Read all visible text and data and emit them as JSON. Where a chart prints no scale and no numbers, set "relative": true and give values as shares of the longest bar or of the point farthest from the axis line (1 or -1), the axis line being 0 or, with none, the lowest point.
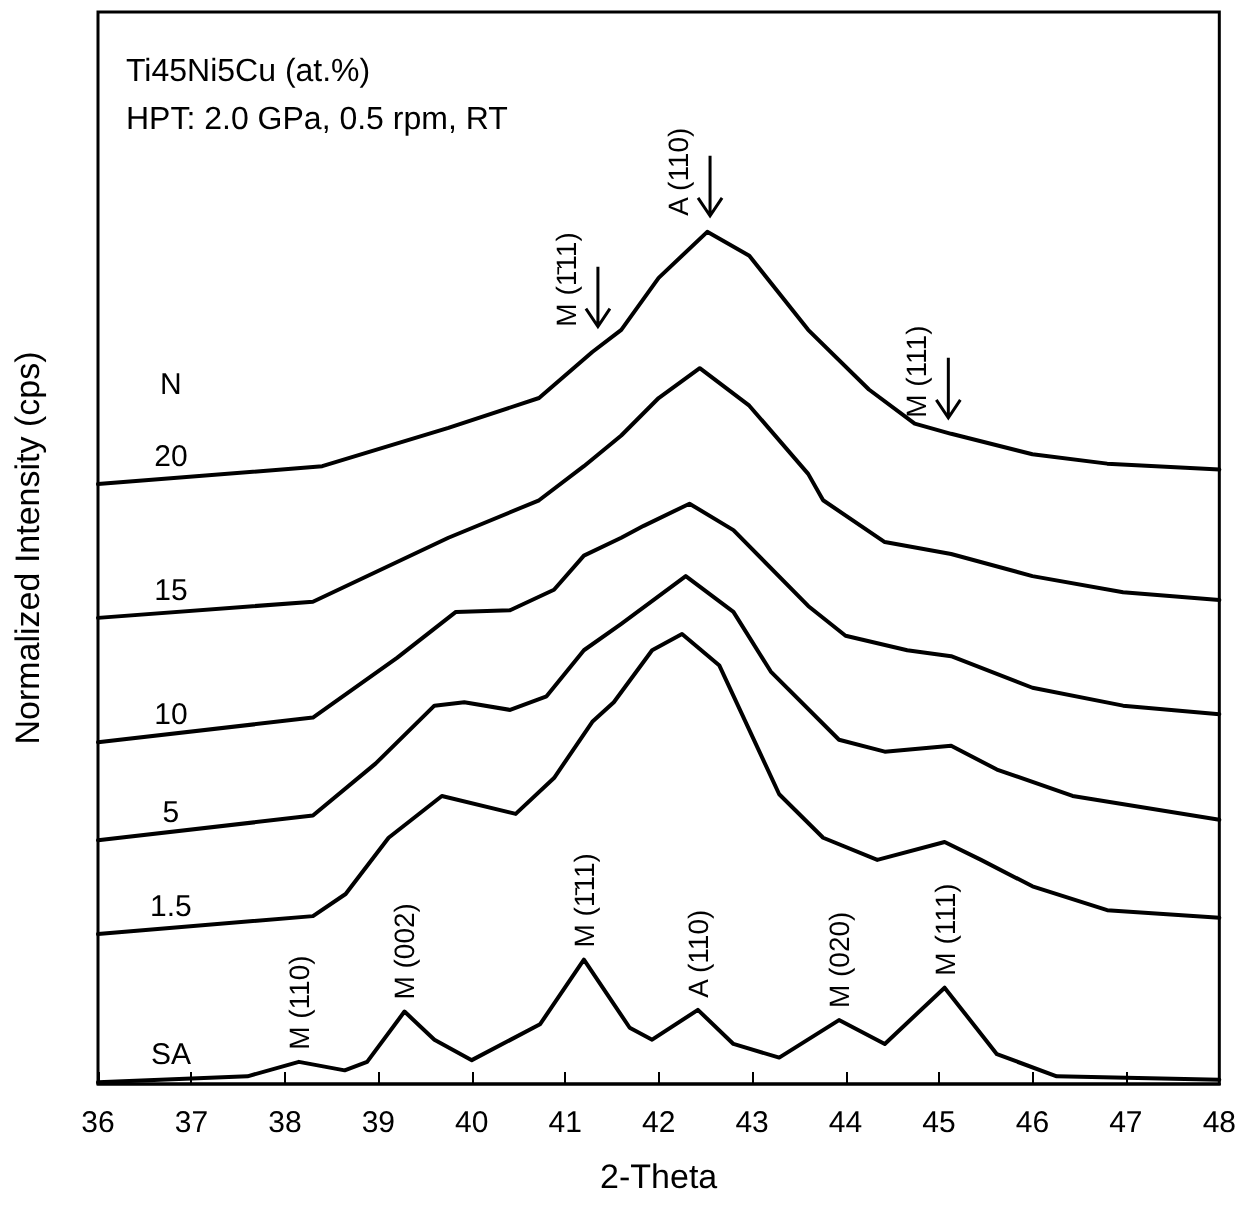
{
  "chart_data": {
    "type": "line",
    "title": "Ti45Ni5Cu (at.%)",
    "subtitle": "HPT: 2.0 GPa, 0.5 rpm, RT",
    "xlabel": "2-Theta",
    "ylabel": "Normalized Intensity (cps)",
    "legend_title": "N",
    "relative": true,
    "xlim": [
      36,
      48
    ],
    "xticks": [
      36,
      37,
      38,
      39,
      40,
      41,
      42,
      43,
      44,
      45,
      46,
      47,
      48
    ],
    "grid": false,
    "legend": false,
    "marker": "none",
    "line_style": "solid",
    "series": [
      {
        "name": "20",
        "color": "#000000",
        "x": [
          36,
          38.4,
          39.75,
          40.72,
          41.29,
          41.6,
          42.0,
          42.52,
          42.97,
          43.6,
          44.25,
          44.74,
          45.13,
          46.0,
          46.8,
          48
        ],
        "values": [
          0.704,
          0.725,
          0.77,
          0.805,
          0.859,
          0.885,
          0.946,
          1,
          0.972,
          0.885,
          0.815,
          0.775,
          0.763,
          0.739,
          0.728,
          0.721
        ]
      },
      {
        "name": "15",
        "color": "#000000",
        "x": [
          36,
          38.3,
          39.75,
          40.72,
          41.2,
          41.6,
          42.0,
          42.44,
          42.97,
          43.6,
          43.76,
          44.42,
          45.13,
          46.0,
          46.97,
          48
        ],
        "values": [
          0.547,
          0.566,
          0.641,
          0.685,
          0.725,
          0.761,
          0.805,
          0.84,
          0.796,
          0.716,
          0.685,
          0.636,
          0.622,
          0.596,
          0.577,
          0.568
        ]
      },
      {
        "name": "10",
        "color": "#000000",
        "x": [
          36,
          38.3,
          39.2,
          39.83,
          40.41,
          40.88,
          41.2,
          41.6,
          41.84,
          42.33,
          42.8,
          43.6,
          44.0,
          44.66,
          45.13,
          46.0,
          46.97,
          48
        ],
        "values": [
          0.401,
          0.43,
          0.5,
          0.554,
          0.556,
          0.58,
          0.62,
          0.641,
          0.655,
          0.681,
          0.65,
          0.561,
          0.526,
          0.509,
          0.502,
          0.465,
          0.444,
          0.434
        ]
      },
      {
        "name": "5",
        "color": "#000000",
        "x": [
          36,
          38.3,
          38.97,
          39.6,
          39.92,
          40.41,
          40.8,
          41.2,
          41.6,
          42.29,
          42.8,
          43.2,
          43.93,
          44.42,
          45.13,
          45.62,
          46.43,
          48
        ],
        "values": [
          0.286,
          0.315,
          0.376,
          0.444,
          0.448,
          0.439,
          0.455,
          0.509,
          0.54,
          0.596,
          0.554,
          0.484,
          0.404,
          0.39,
          0.397,
          0.369,
          0.338,
          0.31
        ]
      },
      {
        "name": "1.5",
        "color": "#000000",
        "x": [
          36,
          38.3,
          38.65,
          39.11,
          39.68,
          40.47,
          40.88,
          41.29,
          41.52,
          41.93,
          42.25,
          42.65,
          43.29,
          43.76,
          44.34,
          45.06,
          45.45,
          46.0,
          46.8,
          48
        ],
        "values": [
          0.176,
          0.197,
          0.223,
          0.289,
          0.338,
          0.317,
          0.359,
          0.425,
          0.448,
          0.509,
          0.528,
          0.491,
          0.34,
          0.289,
          0.263,
          0.284,
          0.263,
          0.232,
          0.204,
          0.195
        ]
      },
      {
        "name": "SA",
        "color": "#000000",
        "x": [
          36,
          37.6,
          38.15,
          38.64,
          38.88,
          39.28,
          39.6,
          40.0,
          40.73,
          41.2,
          41.69,
          41.93,
          42.42,
          42.8,
          43.29,
          43.93,
          44.42,
          45.06,
          45.62,
          46.26,
          48
        ],
        "values": [
          0.002,
          0.009,
          0.026,
          0.016,
          0.026,
          0.085,
          0.052,
          0.028,
          0.07,
          0.146,
          0.066,
          0.052,
          0.087,
          0.047,
          0.031,
          0.075,
          0.047,
          0.113,
          0.035,
          0.009,
          0.005
        ]
      }
    ],
    "annotations": [
      {
        "text": "M (110)",
        "x": 38.15,
        "y": 0.026
      },
      {
        "text": "M (002)",
        "x": 39.28,
        "y": 0.085
      },
      {
        "text": "M (1̄11)",
        "x": 41.2,
        "y": 0.146
      },
      {
        "text": "A (110)",
        "x": 42.42,
        "y": 0.087
      },
      {
        "text": "M (020)",
        "x": 43.93,
        "y": 0.075
      },
      {
        "text": "M (111)",
        "x": 45.06,
        "y": 0.113
      },
      {
        "text": "M (1̄11)",
        "x": 41.35,
        "y": 0.87
      },
      {
        "text": "A (110)",
        "x": 42.55,
        "y": 1
      },
      {
        "text": "M (111)",
        "x": 45.1,
        "y": 0.763
      }
    ]
  }
}
